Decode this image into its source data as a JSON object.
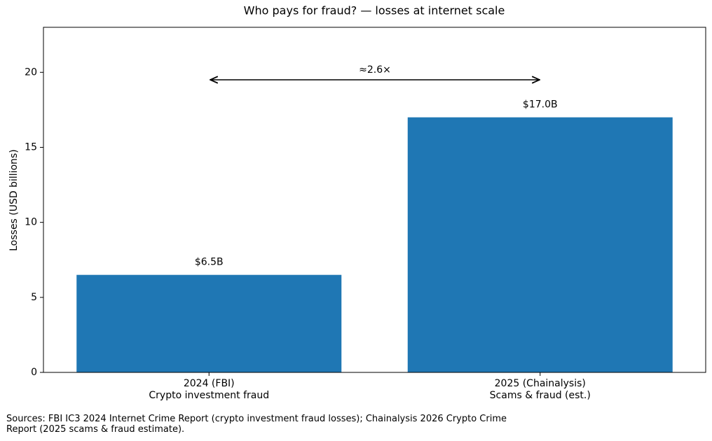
{
  "chart_data": {
    "type": "bar",
    "title": "Who pays for fraud? — losses at internet scale",
    "ylabel": "Losses (USD billions)",
    "categories": [
      "2024 (FBI)\nCrypto investment fraud",
      "2025 (Chainalysis)\nScams & fraud (est.)"
    ],
    "values": [
      6.5,
      17.0
    ],
    "value_labels": [
      "$6.5B",
      "$17.0B"
    ],
    "color": "#1f77b4",
    "ylim": [
      0,
      23
    ],
    "yticks": [
      0,
      5,
      10,
      15,
      20
    ],
    "grid": false,
    "annotation": "≈2.6×",
    "source": "Sources: FBI IC3 2024 Internet Crime Report (crypto investment fraud losses); Chainalysis 2026 Crypto Crime Report (2025 scams & fraud estimate)."
  }
}
